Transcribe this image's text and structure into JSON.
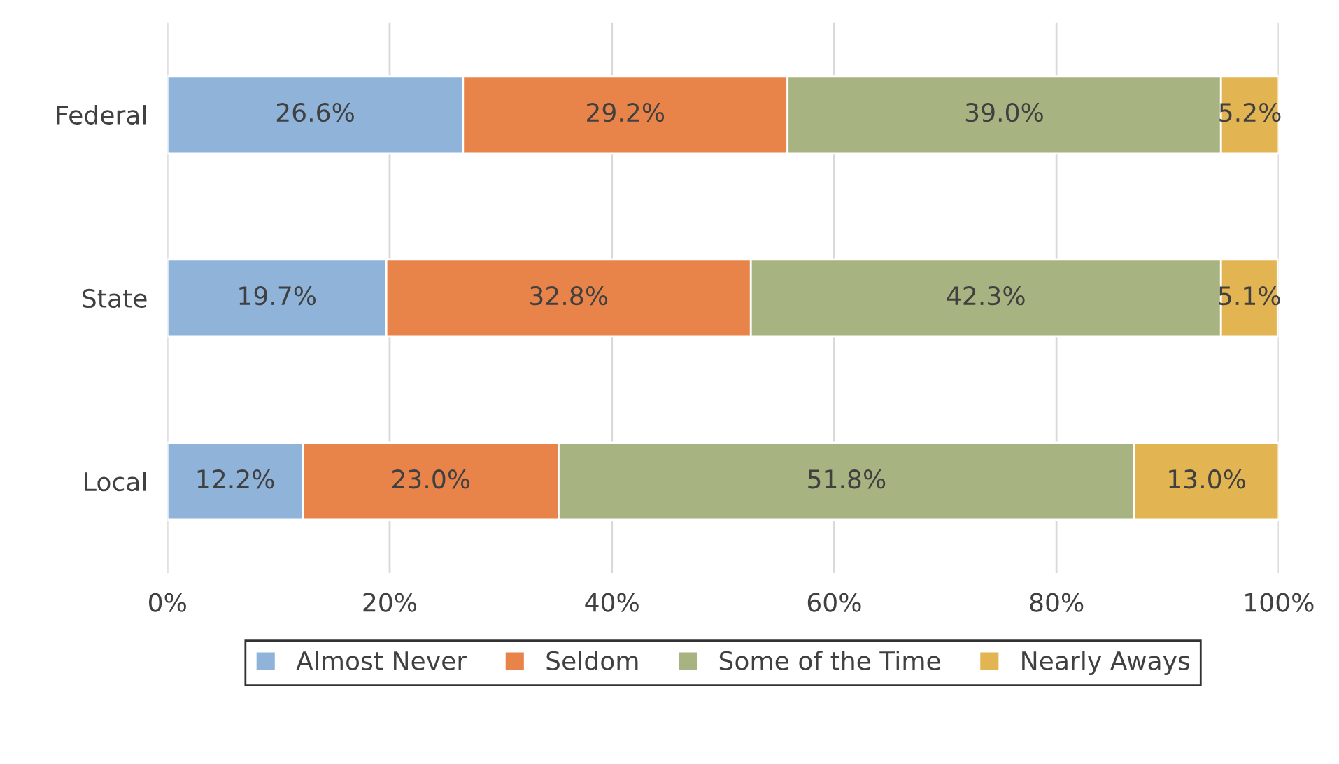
{
  "chart_data": {
    "type": "bar",
    "orientation": "horizontal",
    "stacked": true,
    "categories": [
      "Federal",
      "State",
      "Local"
    ],
    "series": [
      {
        "name": "Almost Never",
        "color": "#8fb3d9",
        "values": [
          26.6,
          19.7,
          12.2
        ],
        "value_labels": [
          "26.6%",
          "19.7%",
          "12.2%"
        ]
      },
      {
        "name": "Seldom",
        "color": "#e8834a",
        "values": [
          29.2,
          32.8,
          23.0
        ],
        "value_labels": [
          "29.2%",
          "32.8%",
          "23.0%"
        ]
      },
      {
        "name": "Some of the Time",
        "color": "#a7b381",
        "values": [
          39.0,
          42.3,
          51.8
        ],
        "value_labels": [
          "39.0%",
          "42.3%",
          "51.8%"
        ]
      },
      {
        "name": "Nearly Aways",
        "color": "#e3b552",
        "values": [
          5.2,
          5.1,
          13.0
        ],
        "value_labels": [
          "5.2%",
          "5.1%",
          "13.0%"
        ]
      }
    ],
    "xlim": [
      0,
      100
    ],
    "xticks": [
      {
        "value": 0,
        "label": "0%"
      },
      {
        "value": 20,
        "label": "20%"
      },
      {
        "value": 40,
        "label": "40%"
      },
      {
        "value": 60,
        "label": "60%"
      },
      {
        "value": 80,
        "label": "80%"
      },
      {
        "value": 100,
        "label": "100%"
      }
    ],
    "grid": "x",
    "legend": "bottom"
  }
}
